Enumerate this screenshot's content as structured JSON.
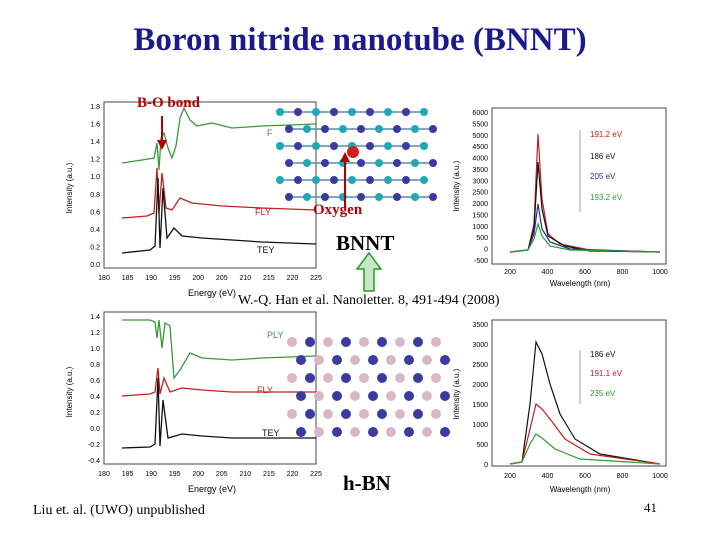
{
  "slide": {
    "title": "Boron nitride nanotube (BNNT)",
    "bo_bond_label": "B-O bond",
    "oxygen_label": "Oxygen",
    "bnnt_label": "BNNT",
    "citation": "W.-Q. Han et al. Nanoletter. 8, 491-494 (2008)",
    "hbn_label": "h-BN",
    "footer_credit": "Liu et. al. (UWO) unpublished",
    "page_number": "41"
  },
  "chart_data": [
    {
      "type": "line",
      "ylabel": "Intensity (a.u.)",
      "xlabel": "Energy (eV)",
      "xticks": [
        "180",
        "185",
        "190",
        "195",
        "200",
        "205",
        "210",
        "215",
        "220",
        "225"
      ],
      "yticks": [
        "1.8",
        "1.6",
        "1.4",
        "1.2",
        "1.0",
        "0.8",
        "0.6",
        "0.4",
        "0.2",
        "0.0"
      ],
      "series": [
        {
          "name": "F"
        },
        {
          "name": "FLY"
        },
        {
          "name": "TEY"
        }
      ],
      "colors": {
        "F": "#3a9a3a",
        "FLY": "#c02020",
        "TEY": "#111111"
      }
    },
    {
      "type": "line",
      "ylabel": "Intensity (a.u.)",
      "xlabel": "Wavelength (nm)",
      "xticks": [
        "200",
        "400",
        "600",
        "800",
        "1000"
      ],
      "yticks": [
        "6000",
        "5500",
        "5000",
        "4500",
        "4000",
        "3500",
        "3000",
        "2500",
        "2000",
        "1500",
        "1000",
        "500",
        "0",
        "-500"
      ],
      "series": [
        {
          "name": "191.2 eV"
        },
        {
          "name": "186 eV"
        },
        {
          "name": "205 eV"
        },
        {
          "name": "193.2 eV"
        }
      ],
      "colors": {
        "191.2 eV": "#c02020",
        "186 eV": "#111111",
        "205 eV": "#2a2ab0",
        "193.2 eV": "#2aa02a"
      }
    },
    {
      "type": "line",
      "ylabel": "Intensity (a.u.)",
      "xlabel": "Energy (eV)",
      "xticks": [
        "180",
        "185",
        "190",
        "195",
        "200",
        "205",
        "210",
        "215",
        "220",
        "225"
      ],
      "yticks": [
        "1.4",
        "1.2",
        "1.0",
        "0.8",
        "0.6",
        "0.4",
        "0.2",
        "0.0",
        "-0.2",
        "-0.4"
      ],
      "series": [
        {
          "name": "PLY"
        },
        {
          "name": "FLY"
        },
        {
          "name": "TEY"
        }
      ],
      "colors": {
        "PLY": "#3a9a3a",
        "FLY": "#c02020",
        "TEY": "#111111"
      }
    },
    {
      "type": "line",
      "ylabel": "Intensity (a.u.)",
      "xlabel": "Wavelength (nm)",
      "xticks": [
        "200",
        "400",
        "600",
        "800",
        "1000"
      ],
      "yticks": [
        "3500",
        "3000",
        "2500",
        "2000",
        "1500",
        "1000",
        "500",
        "0"
      ],
      "series": [
        {
          "name": "186 eV"
        },
        {
          "name": "191.1 eV"
        },
        {
          "name": "235 eV"
        }
      ],
      "colors": {
        "186 eV": "#111111",
        "191.1 eV": "#c02020",
        "235 eV": "#2aa02a"
      }
    }
  ],
  "colors": {
    "title": "#1a1a8c",
    "accent_red": "#b00000",
    "arrow_green": "#2a9a2a",
    "boron": "#3a3aa0",
    "nitrogen_tube": "#20a8b8",
    "hbn_light": "#d8b8c8"
  }
}
